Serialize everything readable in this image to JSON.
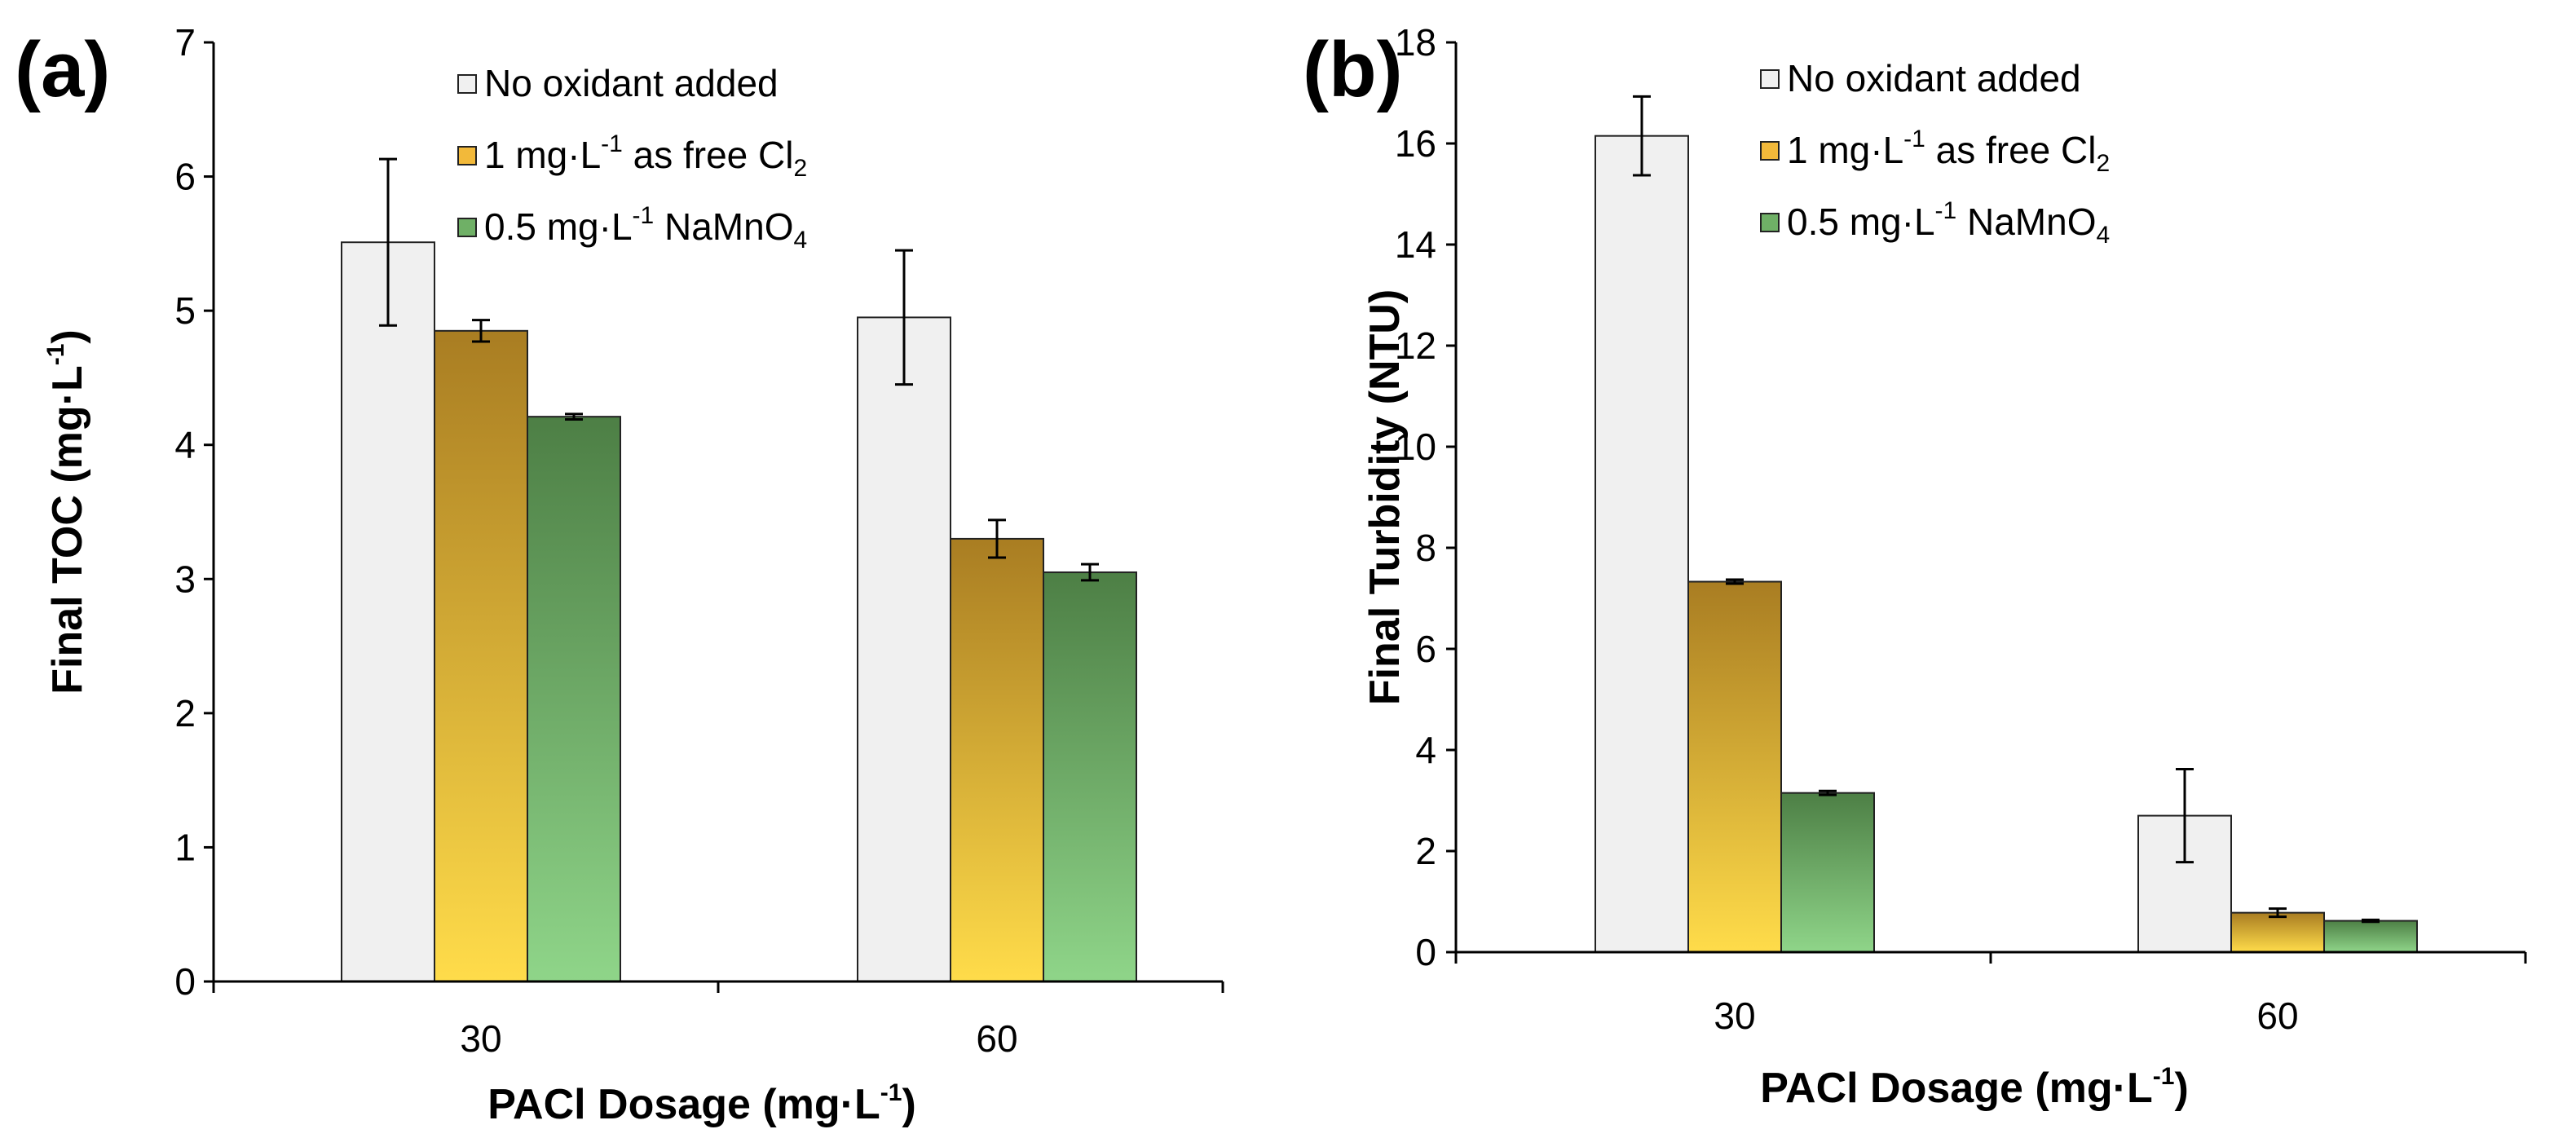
{
  "chart_data": [
    {
      "type": "bar",
      "panel_label": "(a)",
      "categories": [
        "30",
        "60"
      ],
      "xlabel": {
        "main": "PACl Dosage (mg·L",
        "sup": "-1",
        "tail": ")"
      },
      "ylabel": {
        "main": "Final TOC (mg·L",
        "sup": "-1",
        "tail": ")"
      },
      "ylim": [
        0,
        7
      ],
      "yticks": [
        "0",
        "1",
        "2",
        "3",
        "4",
        "5",
        "6",
        "7"
      ],
      "series": [
        {
          "name": "No oxidant added",
          "values": [
            5.51,
            4.95
          ],
          "errors": [
            0.62,
            0.5
          ]
        },
        {
          "name": "1 mg·L-1 as free Cl2",
          "values": [
            4.85,
            3.3
          ],
          "errors": [
            0.08,
            0.14
          ]
        },
        {
          "name": "0.5 mg·L-1 NaMnO4",
          "values": [
            4.21,
            3.05
          ],
          "errors": [
            0.02,
            0.06
          ]
        }
      ],
      "legend": [
        {
          "parts": [
            [
              "No oxidant added",
              "n"
            ]
          ]
        },
        {
          "parts": [
            [
              "1  mg·L",
              "n"
            ],
            [
              "-1",
              "sup"
            ],
            [
              " as free Cl",
              "n"
            ],
            [
              "2",
              "sub"
            ]
          ]
        },
        {
          "parts": [
            [
              "0.5  mg·L",
              "n"
            ],
            [
              "-1",
              "sup"
            ],
            [
              " NaMnO",
              "n"
            ],
            [
              "4",
              "sub"
            ]
          ]
        }
      ]
    },
    {
      "type": "bar",
      "panel_label": "(b)",
      "categories": [
        "30",
        "60"
      ],
      "xlabel": {
        "main": "PACl Dosage (mg·L",
        "sup": "-1",
        "tail": ")"
      },
      "ylabel": {
        "main": "Final Turbidity (NTU)",
        "sup": "",
        "tail": ""
      },
      "ylim": [
        0,
        18
      ],
      "yticks": [
        "0",
        "2",
        "4",
        "6",
        "8",
        "10",
        "12",
        "14",
        "16",
        "18"
      ],
      "series": [
        {
          "name": "No oxidant added",
          "values": [
            16.15,
            2.7
          ],
          "errors": [
            0.78,
            0.92
          ]
        },
        {
          "name": "1 mg·L-1 as free Cl2",
          "values": [
            7.33,
            0.78
          ],
          "errors": [
            0.04,
            0.08
          ]
        },
        {
          "name": "0.5 mg·L-1 NaMnO4",
          "values": [
            3.15,
            0.62
          ],
          "errors": [
            0.04,
            0.02
          ]
        }
      ],
      "legend": [
        {
          "parts": [
            [
              "No oxidant added",
              "n"
            ]
          ]
        },
        {
          "parts": [
            [
              "1  mg·L",
              "n"
            ],
            [
              "-1",
              "sup"
            ],
            [
              " as free Cl",
              "n"
            ],
            [
              "2",
              "sub"
            ]
          ]
        },
        {
          "parts": [
            [
              "0.5  mg·L",
              "n"
            ],
            [
              "-1",
              "sup"
            ],
            [
              " NaMnO",
              "n"
            ],
            [
              "4",
              "sub"
            ]
          ]
        }
      ]
    }
  ],
  "colors": {
    "series0": "#f0f0f0",
    "series1_top": "#a97d22",
    "series1_bottom": "#ffdc4a",
    "series2_top": "#4d7f45",
    "series2_bottom": "#8fd589"
  }
}
